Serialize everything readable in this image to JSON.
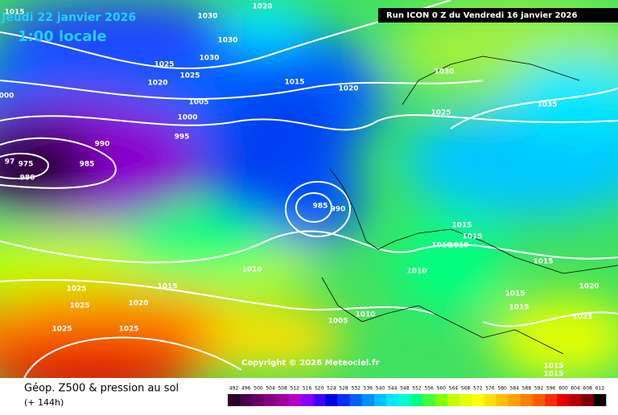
{
  "header": {
    "date": "Jeudi 22 janvier 2026",
    "time": "1:00 locale",
    "run": "Run ICON 0 Z du Vendredi 16 janvier 2026"
  },
  "copyright": "Copyright © 2026 Meteociel.fr",
  "caption": {
    "title": "Géop. Z500 & pression au sol",
    "subtitle": "(+ 144h)"
  },
  "isobar_labels": [
    "1015",
    "1030",
    "1020",
    "1030",
    "1030",
    "1025",
    "1025",
    "1020",
    "1015",
    "1020",
    "1030",
    "1005",
    "1000",
    "1025",
    "1035",
    "995",
    "990",
    "985",
    "975",
    "980",
    "985",
    "990",
    "1015",
    "1015",
    "1010",
    "1010",
    "1010",
    "1015",
    "1010",
    "1025",
    "1015",
    "1020",
    "1015",
    "1015",
    "1025",
    "1020",
    "1010",
    "1005",
    "1025",
    "1025",
    "1025",
    "1015",
    "1015",
    "000",
    "97"
  ],
  "legend": {
    "values": [
      492,
      496,
      500,
      504,
      508,
      512,
      516,
      520,
      524,
      528,
      532,
      536,
      540,
      544,
      548,
      552,
      556,
      560,
      564,
      568,
      572,
      576,
      580,
      584,
      588,
      592,
      596,
      600,
      604,
      608,
      612
    ],
    "colors": [
      "#2a002a",
      "#4a004a",
      "#680068",
      "#860086",
      "#a000a0",
      "#b400c8",
      "#8a00ff",
      "#4000ff",
      "#0000e6",
      "#0030ff",
      "#0060ff",
      "#0090ff",
      "#00c0ff",
      "#00e8ff",
      "#00ffc8",
      "#00ff80",
      "#40ff40",
      "#80ff00",
      "#c0ff00",
      "#e8ff00",
      "#ffff00",
      "#ffe000",
      "#ffc000",
      "#ffa000",
      "#ff8000",
      "#ff5a00",
      "#ff2a00",
      "#e60000",
      "#b40000",
      "#800000",
      "#000000"
    ]
  }
}
